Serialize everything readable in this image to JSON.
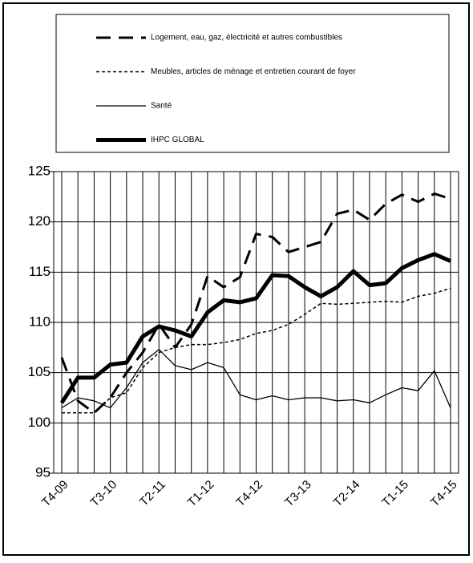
{
  "chart_data": {
    "type": "line",
    "categories": [
      "T4-09",
      null,
      null,
      "T3-10",
      null,
      null,
      "T2-11",
      null,
      null,
      "T1-12",
      null,
      null,
      "T4-12",
      null,
      null,
      "T3-13",
      null,
      null,
      "T2-14",
      null,
      null,
      "T1-15",
      null,
      null,
      "T4-15"
    ],
    "series": [
      {
        "name": "Logement, eau, gaz, électricité et autres combustibles",
        "color": "#000000",
        "line_style": "dashed",
        "values": [
          106.5,
          102.2,
          101,
          102.5,
          105,
          107,
          109.8,
          107.5,
          109.8,
          114.6,
          113.5,
          114.5,
          118.8,
          118.5,
          117,
          117.5,
          118,
          120.8,
          121.2,
          120.2,
          121.8,
          122.7,
          122,
          122.8,
          122.3
        ]
      },
      {
        "name": "Meubles, articles de ménage et entretien courant de foyer",
        "color": "#000000",
        "line_style": "dotted",
        "values": [
          101,
          101,
          101,
          102.5,
          103,
          105.5,
          107,
          107.5,
          107.8,
          107.8,
          108,
          108.3,
          108.9,
          109.2,
          109.8,
          110.8,
          111.9,
          111.8,
          111.9,
          112,
          112.1,
          112,
          112.6,
          112.9,
          113.4
        ]
      },
      {
        "name": "Santé",
        "color": "#000000",
        "line_style": "solid",
        "values": [
          101.5,
          102.5,
          102.2,
          101.5,
          103.5,
          106,
          107.3,
          105.7,
          105.3,
          106,
          105.5,
          102.8,
          102.3,
          102.7,
          102.3,
          102.5,
          102.5,
          102.2,
          102.3,
          102,
          102.8,
          103.5,
          103.2,
          105.2,
          101.5
        ]
      },
      {
        "name": "IHPC GLOBAL",
        "color": "#000000",
        "line_style": "thick",
        "values": [
          102,
          104.5,
          104.5,
          105.8,
          106,
          108.6,
          109.6,
          109.2,
          108.6,
          111,
          112.2,
          112,
          112.4,
          114.7,
          114.6,
          113.5,
          112.6,
          113.5,
          115.1,
          113.7,
          113.9,
          115.4,
          116.2,
          116.8,
          116.1
        ]
      }
    ],
    "ylim": [
      95,
      125
    ],
    "yticks": [
      95,
      100,
      105,
      110,
      115,
      120,
      125
    ],
    "grid": true
  }
}
